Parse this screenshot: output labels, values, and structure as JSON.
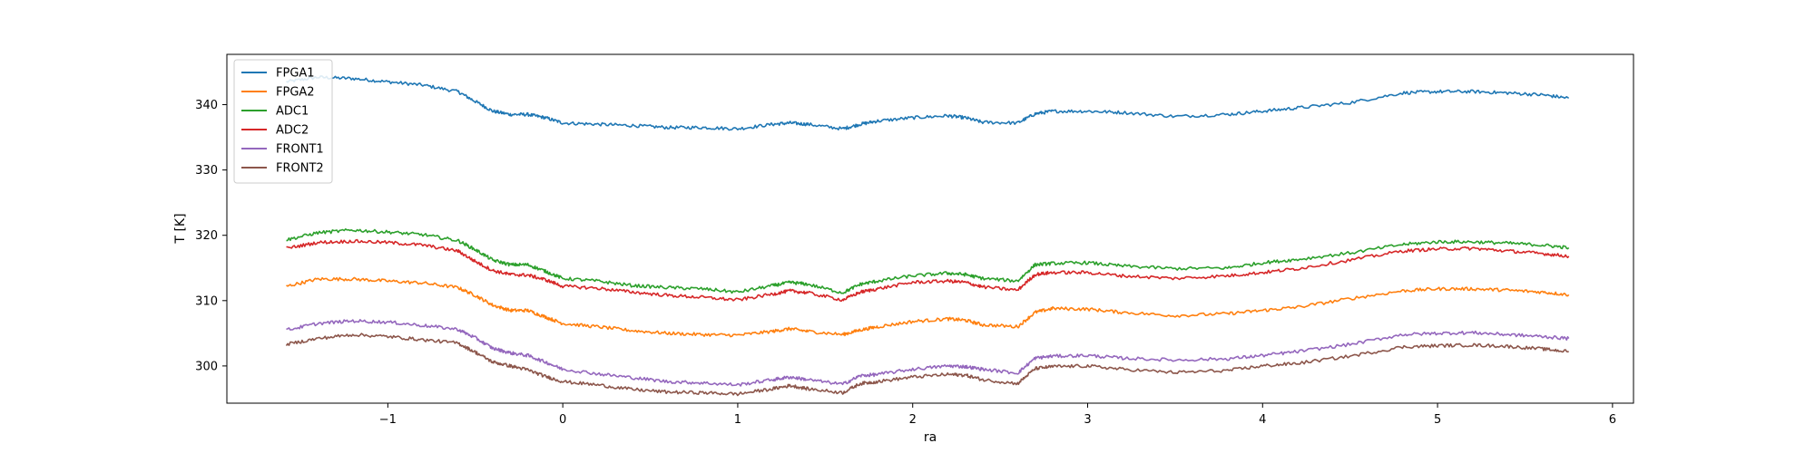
{
  "chart_data": {
    "type": "line",
    "title": "",
    "xlabel": "ra",
    "ylabel": "T [K]",
    "xlim": [
      -1.92,
      6.12
    ],
    "ylim": [
      294.3,
      347.7
    ],
    "xticks": [
      -1,
      0,
      1,
      2,
      3,
      4,
      5,
      6
    ],
    "xtick_labels": [
      "−1",
      "0",
      "1",
      "2",
      "3",
      "4",
      "5",
      "6"
    ],
    "yticks": [
      300,
      310,
      320,
      330,
      340
    ],
    "ytick_labels": [
      "300",
      "310",
      "320",
      "330",
      "340"
    ],
    "grid": false,
    "legend_position": "upper-left",
    "x": [
      -1.58,
      -1.4,
      -1.2,
      -1.0,
      -0.8,
      -0.6,
      -0.5,
      -0.4,
      -0.3,
      -0.2,
      -0.1,
      0.0,
      0.2,
      0.4,
      0.6,
      0.8,
      1.0,
      1.2,
      1.3,
      1.4,
      1.6,
      1.7,
      1.8,
      2.0,
      2.2,
      2.3,
      2.4,
      2.6,
      2.7,
      2.8,
      3.0,
      3.2,
      3.5,
      3.8,
      4.0,
      4.2,
      4.5,
      4.8,
      5.0,
      5.2,
      5.4,
      5.6,
      5.75
    ],
    "series": [
      {
        "name": "FPGA1",
        "color": "#1f77b4",
        "values": [
          343.5,
          344.2,
          344.0,
          343.5,
          343.0,
          342.0,
          340.5,
          339.0,
          338.5,
          338.5,
          338.0,
          337.2,
          337.0,
          336.8,
          336.5,
          336.5,
          336.3,
          337.0,
          337.2,
          337.0,
          336.3,
          337.0,
          337.5,
          338.0,
          338.3,
          338.0,
          337.3,
          337.2,
          338.6,
          339.0,
          339.0,
          338.8,
          338.2,
          338.5,
          339.0,
          339.5,
          340.3,
          341.8,
          342.0,
          342.0,
          341.8,
          341.5,
          341.0
        ]
      },
      {
        "name": "FPGA2",
        "color": "#ff7f0e",
        "values": [
          312.2,
          313.3,
          313.3,
          313.0,
          312.7,
          312.0,
          310.8,
          309.3,
          308.5,
          308.5,
          307.5,
          306.5,
          306.0,
          305.4,
          305.0,
          304.8,
          304.7,
          305.3,
          305.7,
          305.3,
          304.8,
          305.5,
          306.0,
          306.8,
          307.2,
          307.0,
          306.3,
          306.0,
          308.2,
          308.8,
          308.7,
          308.2,
          307.7,
          308.0,
          308.5,
          309.0,
          310.3,
          311.5,
          311.8,
          311.8,
          311.6,
          311.3,
          310.9
        ]
      },
      {
        "name": "ADC1",
        "color": "#2ca02c",
        "values": [
          319.3,
          320.4,
          320.8,
          320.5,
          320.1,
          319.2,
          317.8,
          316.2,
          315.5,
          315.5,
          314.5,
          313.4,
          313.0,
          312.3,
          312.0,
          311.8,
          311.3,
          312.3,
          312.8,
          312.5,
          311.2,
          312.5,
          313.0,
          313.8,
          314.2,
          314.0,
          313.4,
          313.0,
          315.5,
          315.7,
          315.8,
          315.3,
          314.9,
          315.0,
          315.8,
          316.3,
          317.3,
          318.6,
          319.0,
          319.0,
          318.8,
          318.5,
          318.1
        ]
      },
      {
        "name": "ADC2",
        "color": "#d62728",
        "values": [
          318.0,
          318.9,
          319.1,
          318.9,
          318.5,
          317.6,
          316.0,
          314.6,
          314.0,
          313.9,
          313.2,
          312.2,
          311.9,
          311.3,
          310.8,
          310.5,
          310.1,
          311.0,
          311.5,
          311.2,
          310.1,
          311.3,
          311.8,
          312.8,
          313.0,
          312.8,
          312.1,
          311.6,
          314.0,
          314.3,
          314.3,
          313.8,
          313.4,
          313.8,
          314.3,
          314.9,
          316.2,
          317.6,
          317.9,
          318.0,
          317.6,
          317.2,
          316.8
        ]
      },
      {
        "name": "FRONT1",
        "color": "#9467bd",
        "values": [
          305.5,
          306.5,
          306.9,
          306.7,
          306.2,
          305.6,
          304.3,
          302.7,
          302.0,
          301.6,
          300.6,
          299.5,
          298.8,
          298.2,
          297.6,
          297.4,
          297.1,
          297.9,
          298.3,
          297.9,
          297.2,
          298.5,
          298.7,
          299.5,
          300.0,
          299.9,
          299.5,
          298.9,
          301.2,
          301.5,
          301.6,
          301.2,
          300.9,
          301.1,
          301.6,
          302.2,
          303.3,
          304.8,
          305.0,
          305.1,
          304.8,
          304.5,
          304.2
        ]
      },
      {
        "name": "FRONT2",
        "color": "#8c564b",
        "values": [
          303.3,
          304.2,
          304.8,
          304.5,
          304.0,
          303.5,
          302.1,
          300.6,
          300.0,
          299.4,
          298.4,
          297.6,
          297.1,
          296.4,
          296.0,
          295.9,
          295.7,
          296.5,
          297.0,
          296.5,
          295.9,
          297.3,
          297.6,
          298.3,
          298.7,
          298.6,
          297.9,
          297.3,
          299.6,
          299.9,
          300.0,
          299.5,
          299.0,
          299.3,
          300.0,
          300.4,
          301.5,
          302.9,
          303.1,
          303.2,
          303.0,
          302.6,
          302.2
        ]
      }
    ]
  }
}
